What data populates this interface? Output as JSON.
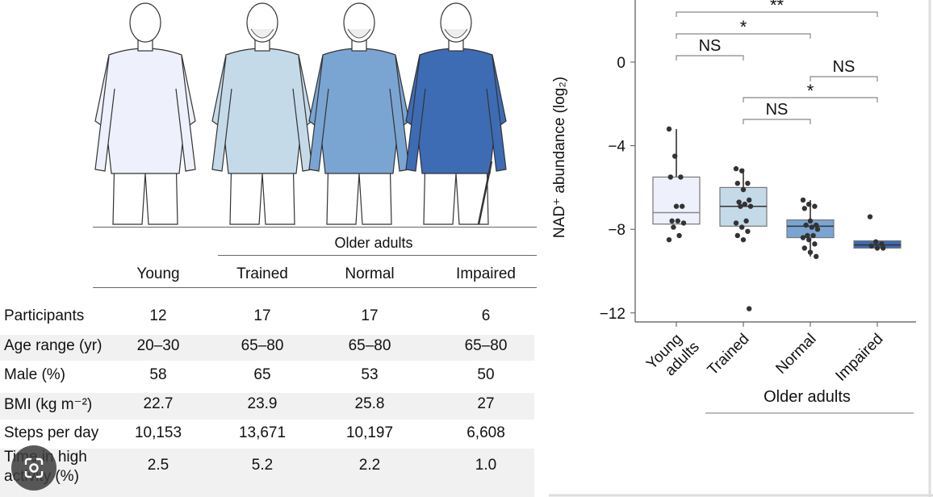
{
  "table": {
    "group_header": "Older adults",
    "columns": [
      "Young",
      "Trained",
      "Normal",
      "Impaired"
    ],
    "rows": [
      {
        "label": "Participants",
        "values": [
          "12",
          "17",
          "17",
          "6"
        ]
      },
      {
        "label": "Age range (yr)",
        "values": [
          "20–30",
          "65–80",
          "65–80",
          "65–80"
        ]
      },
      {
        "label": "Male (%)",
        "values": [
          "58",
          "65",
          "53",
          "50"
        ]
      },
      {
        "label": "BMI (kg m⁻²)",
        "values": [
          "22.7",
          "23.9",
          "25.8",
          "27"
        ]
      },
      {
        "label": "Steps per day",
        "values": [
          "10,153",
          "13,671",
          "10,197",
          "6,608"
        ]
      },
      {
        "label_line1": "Time in high",
        "label_line2": "activity (%)",
        "values": [
          "2.5",
          "5.2",
          "2.2",
          "1.0"
        ]
      }
    ]
  },
  "illustration": {
    "figures": [
      "young",
      "trained",
      "normal",
      "impaired"
    ],
    "shirt_colors": [
      "#eef0fb",
      "#c5dae9",
      "#7aa5d3",
      "#3d6cb5"
    ]
  },
  "overlay": {
    "icon": "google-lens-icon"
  },
  "chart_data": {
    "type": "box",
    "ylabel": "NAD⁺ abundance (log₂)",
    "ylim": [
      -12.5,
      2.5
    ],
    "yticks": [
      0,
      -4,
      -8,
      -12
    ],
    "ytick_labels": [
      "0",
      "−4",
      "−8",
      "−12"
    ],
    "categories": [
      "Young adults",
      "Trained",
      "Normal",
      "Impaired"
    ],
    "category_lines": [
      [
        "Young",
        "adults"
      ],
      [
        "Trained"
      ],
      [
        "Normal"
      ],
      [
        "Impaired"
      ]
    ],
    "group_label": "Older adults",
    "colors": [
      "#eef0fb",
      "#c5dae9",
      "#7aa5d3",
      "#3d6cb5"
    ],
    "boxes": [
      {
        "q1": -7.75,
        "median": -7.2,
        "q3": -5.5,
        "whisker_low": -7.75,
        "whisker_high": -3.2
      },
      {
        "q1": -7.85,
        "median": -6.9,
        "q3": -6.0,
        "whisker_low": -7.85,
        "whisker_high": -5.1
      },
      {
        "q1": -8.4,
        "median": -7.85,
        "q3": -7.55,
        "whisker_low": -9.3,
        "whisker_high": -6.6
      },
      {
        "q1": -8.9,
        "median": -8.75,
        "q3": -8.55,
        "whisker_low": -8.9,
        "whisker_high": -8.55
      }
    ],
    "points": [
      [
        -3.2,
        -4.5,
        -5.5,
        -5.5,
        -6.9,
        -6.9,
        -7.6,
        -7.6,
        -7.7,
        -7.9,
        -8.3,
        -8.5
      ],
      [
        -5.1,
        -5.2,
        -5.8,
        -5.8,
        -6.1,
        -6.6,
        -6.7,
        -6.8,
        -6.9,
        -6.9,
        -7.6,
        -7.7,
        -7.9,
        -8.1,
        -8.3,
        -8.5,
        -11.8
      ],
      [
        -6.6,
        -6.8,
        -6.9,
        -7.0,
        -7.6,
        -7.8,
        -7.8,
        -7.9,
        -8.0,
        -8.3,
        -8.3,
        -8.4,
        -8.5,
        -8.7,
        -8.9,
        -9.1,
        -9.3
      ],
      [
        -7.4,
        -8.6,
        -8.7,
        -8.8,
        -8.9,
        -8.9
      ]
    ],
    "comparisons": [
      {
        "from": 0,
        "to": 3,
        "label": "**"
      },
      {
        "from": 0,
        "to": 2,
        "label": "*"
      },
      {
        "from": 0,
        "to": 1,
        "label": "NS"
      },
      {
        "from": 2,
        "to": 3,
        "label": "NS"
      },
      {
        "from": 1,
        "to": 3,
        "label": "*"
      },
      {
        "from": 1,
        "to": 2,
        "label": "NS"
      }
    ],
    "grid": false
  }
}
